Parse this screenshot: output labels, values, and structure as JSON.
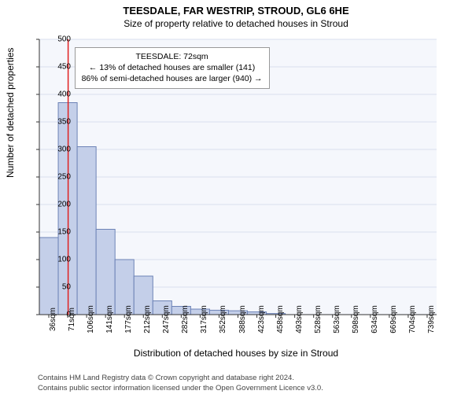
{
  "title": "TEESDALE, FAR WESTRIP, STROUD, GL6 6HE",
  "subtitle": "Size of property relative to detached houses in Stroud",
  "ylabel": "Number of detached properties",
  "xlabel": "Distribution of detached houses by size in Stroud",
  "footer_line1": "Contains HM Land Registry data © Crown copyright and database right 2024.",
  "footer_line2": "Contains public sector information licensed under the Open Government Licence v3.0.",
  "annotation": {
    "line1": "TEESDALE: 72sqm",
    "line2": "← 13% of detached houses are smaller (141)",
    "line3": "86% of semi-detached houses are larger (940) →"
  },
  "chart": {
    "type": "histogram",
    "ylim": [
      0,
      500
    ],
    "ytick_step": 50,
    "categories": [
      "36sqm",
      "71sqm",
      "106sqm",
      "141sqm",
      "177sqm",
      "212sqm",
      "247sqm",
      "282sqm",
      "317sqm",
      "352sqm",
      "388sqm",
      "423sqm",
      "458sqm",
      "493sqm",
      "528sqm",
      "563sqm",
      "598sqm",
      "634sqm",
      "669sqm",
      "704sqm",
      "739sqm"
    ],
    "values": [
      140,
      385,
      305,
      155,
      100,
      70,
      25,
      15,
      10,
      8,
      7,
      5,
      2,
      0,
      0,
      0,
      0,
      0,
      0,
      0,
      0
    ],
    "bar_fill": "#c4cfe9",
    "bar_stroke": "#6d83b6",
    "bar_width_ratio": 1.0,
    "plot_bg": "#f5f7fc",
    "grid_color": "#d9dfee",
    "axis_color": "#333333",
    "ref_line_x_value": 72,
    "ref_line_color": "#e02020",
    "x_domain": [
      18.5,
      756.5
    ],
    "title_fontsize": 13,
    "subtitle_fontsize": 12,
    "label_fontsize": 12,
    "tick_fontsize": 10
  }
}
